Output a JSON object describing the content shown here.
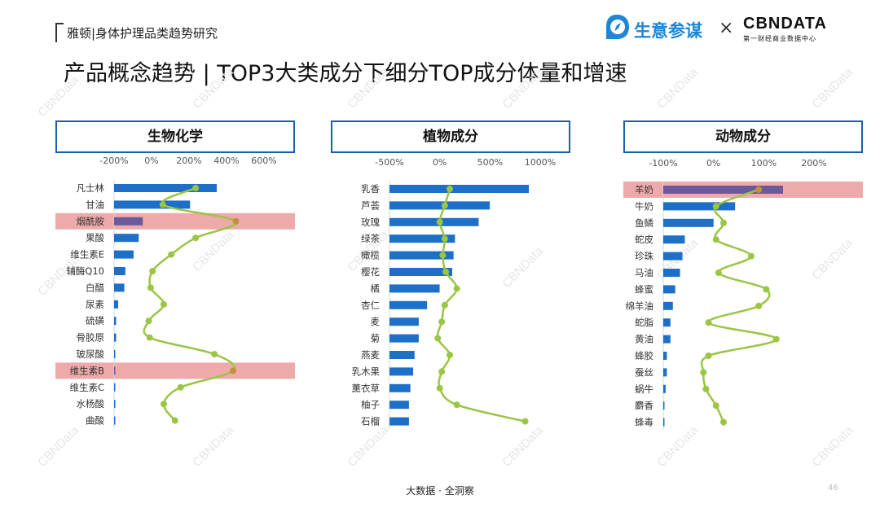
{
  "header": {
    "report_label": "雅顿|身体护理品类趋势研究",
    "brand_name": "生意参谋",
    "brand_separator": "×",
    "partner_name": "CBNDATA",
    "partner_sub": "第一财经商业数据中心"
  },
  "title": "产品概念趋势 | TOP3大类成分下细分TOP成分体量和增速",
  "watermark": "CBNData",
  "footer": {
    "tagline": "大数据 · 全洞察",
    "page_number": "46"
  },
  "colors": {
    "bar": "#1d6fc7",
    "line": "#9bc544",
    "highlight": "#eeaaaa",
    "title_border": "#1d5fa8"
  },
  "chart_data": [
    {
      "type": "bar",
      "title": "生物化学",
      "ticks": [
        "-200%",
        "0%",
        "200%",
        "400%",
        "600%"
      ],
      "xlim": [
        -200,
        600
      ],
      "categories": [
        "凡士林",
        "甘油",
        "烟酰胺",
        "果酸",
        "维生素E",
        "辅酶Q10",
        "白醋",
        "尿素",
        "硫磺",
        "骨胶原",
        "玻尿酸",
        "维生素B",
        "维生素C",
        "水杨酸",
        "曲酸"
      ],
      "volume": [
        100,
        74,
        28,
        24,
        19,
        11,
        10,
        4,
        2,
        2,
        1,
        1,
        1,
        0.5,
        0.3
      ],
      "growth": [
        235,
        60,
        450,
        235,
        105,
        5,
        -5,
        65,
        -15,
        -10,
        335,
        435,
        155,
        65,
        125
      ],
      "highlighted": [
        "烟酰胺",
        "维生素B"
      ]
    },
    {
      "type": "bar",
      "title": "植物成分",
      "ticks": [
        "-500%",
        "0%",
        "500%",
        "1000%"
      ],
      "xlim": [
        -500,
        1000
      ],
      "categories": [
        "乳香",
        "芦荟",
        "玫瑰",
        "绿茶",
        "橄榄",
        "樱花",
        "橘",
        "杏仁",
        "麦",
        "菊",
        "燕麦",
        "乳木果",
        "薰衣草",
        "柚子",
        "石榴"
      ],
      "volume": [
        100,
        72,
        64,
        47,
        46,
        45,
        36,
        27,
        21,
        21,
        18,
        17,
        15,
        14,
        14
      ],
      "growth": [
        100,
        50,
        0,
        50,
        30,
        60,
        170,
        50,
        20,
        -20,
        100,
        20,
        0,
        170,
        850
      ],
      "highlighted": []
    },
    {
      "type": "bar",
      "title": "动物成分",
      "ticks": [
        "-100%",
        "0%",
        "100%",
        "200%"
      ],
      "xlim": [
        -100,
        200
      ],
      "categories": [
        "羊奶",
        "牛奶",
        "鱼鳞",
        "蛇皮",
        "珍珠",
        "马油",
        "蜂蜜",
        "绵羊油",
        "蛇脂",
        "黄油",
        "蜂胶",
        "蚕丝",
        "蜗牛",
        "麝香",
        "蜂毒"
      ],
      "volume": [
        100,
        60,
        42,
        18,
        16,
        14,
        10,
        8,
        6,
        6,
        3,
        3,
        2,
        1,
        0.5
      ],
      "growth": [
        90,
        5,
        20,
        5,
        75,
        10,
        105,
        90,
        -10,
        125,
        -10,
        -20,
        -15,
        5,
        20
      ],
      "highlighted": [
        "羊奶"
      ]
    }
  ]
}
